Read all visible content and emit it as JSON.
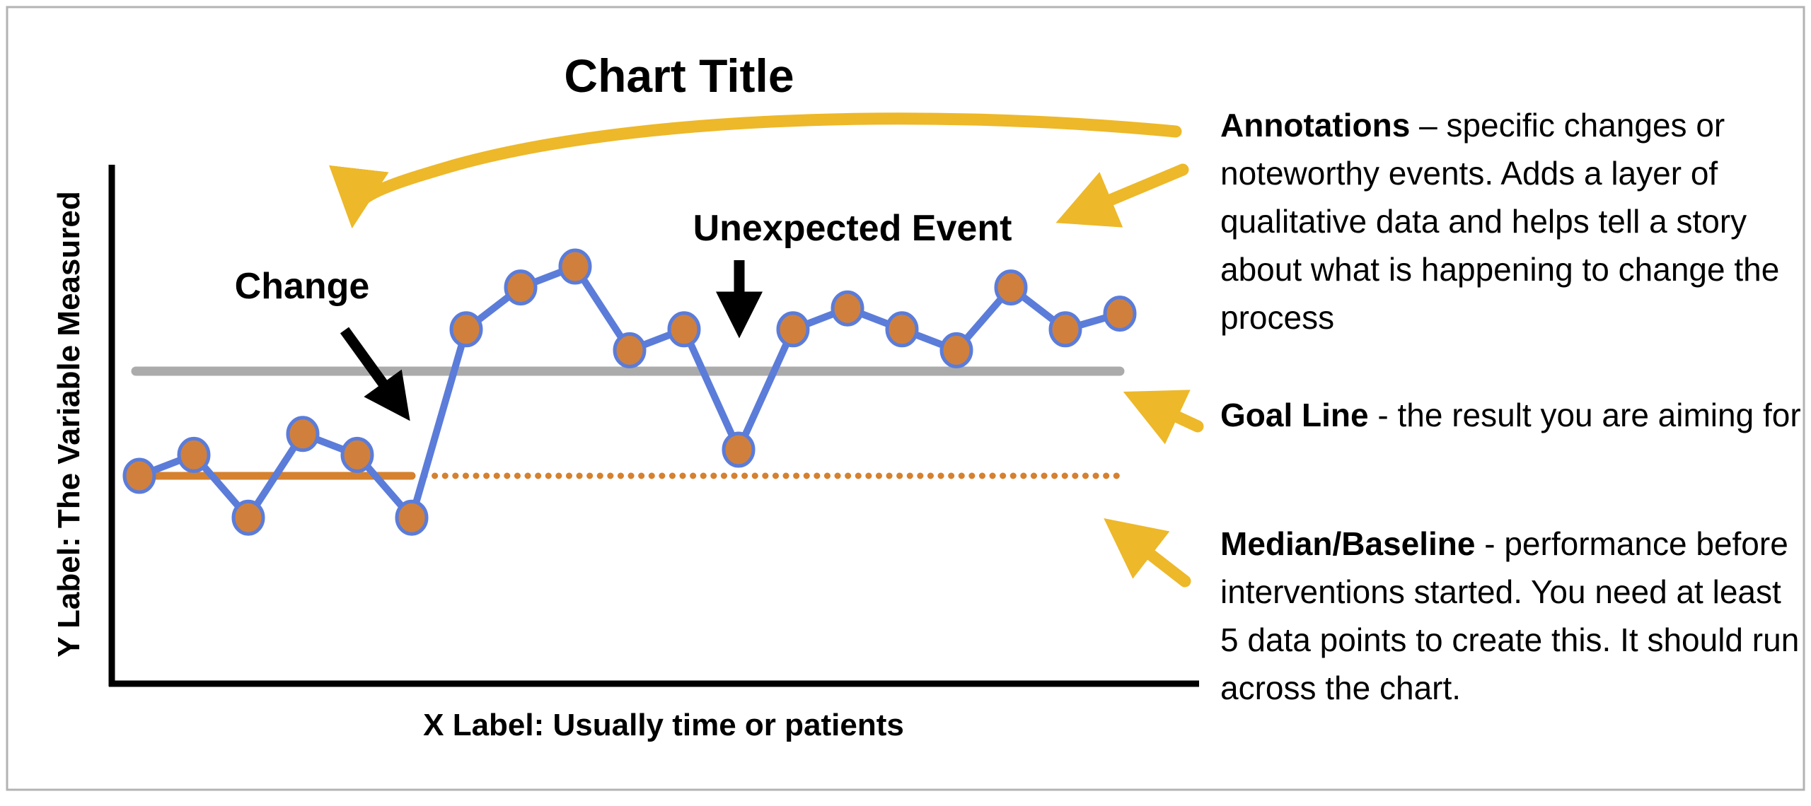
{
  "title": "Chart Title",
  "axes": {
    "y_label": "Y Label: The Variable Measured",
    "x_label": "X Label: Usually time or patients"
  },
  "on_chart_annotations": {
    "change_label": "Change",
    "unexpected_event_label": "Unexpected Event"
  },
  "notes": {
    "annotations": {
      "lead": "Annotations",
      "separator": " – ",
      "body": "specific changes or noteworthy events. Adds a layer of qualitative data and helps tell a story about what is happening to change the process"
    },
    "goal_line": {
      "lead": "Goal Line",
      "separator": " - ",
      "body": "the result you are aiming for"
    },
    "median_baseline": {
      "lead": "Median/Baseline",
      "separator": " - ",
      "body": "performance before interventions started. You need at least 5 data points to create this. It should run across the chart."
    }
  },
  "colors": {
    "series_line": "#5b7cd9",
    "marker_fill": "#d0803c",
    "median_line": "#d5812f",
    "goal_line": "#ababab",
    "highlight_arrow": "#edb829",
    "event_arrow": "#000000",
    "text": "#000000"
  },
  "chart_data": {
    "type": "line",
    "x": [
      1,
      2,
      3,
      4,
      5,
      6,
      7,
      8,
      9,
      10,
      11,
      12,
      13,
      14,
      15,
      16,
      17,
      18,
      19
    ],
    "values": [
      40,
      44,
      32,
      48,
      44,
      32,
      68,
      76,
      80,
      64,
      68,
      45,
      68,
      72,
      68,
      64,
      76,
      68,
      71
    ],
    "series_name": "measured variable",
    "median_baseline_value": 40,
    "goal_value": 60,
    "baseline_solid_through_point": 6,
    "title": "Chart Title",
    "xlabel": "X Label: Usually time or patients",
    "ylabel": "Y Label: The Variable Measured",
    "ylim": [
      0,
      100
    ],
    "grid": false,
    "legend_position": "none",
    "annotations": [
      {
        "label": "Change",
        "at_point": 7
      },
      {
        "label": "Unexpected Event",
        "at_point": 12
      }
    ]
  }
}
